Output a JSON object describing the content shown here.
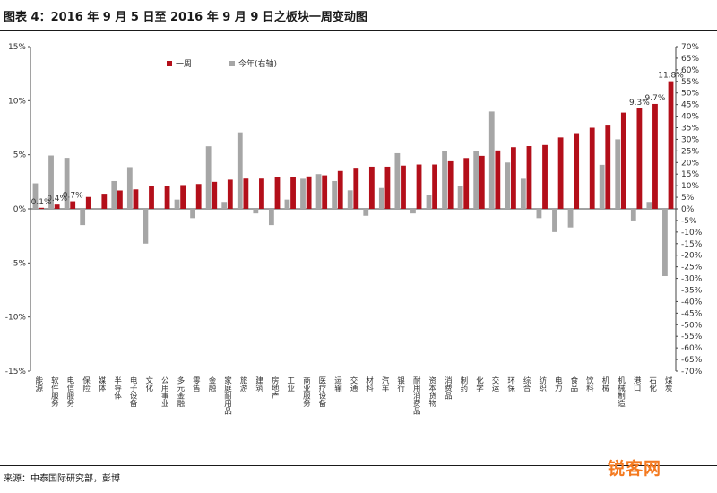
{
  "title": "图表 4：2016 年 9 月 5 日至 2016 年 9 月 9 日之板块一周变动图",
  "source": "来源：中泰国际研究部，彭博",
  "watermark": "锐客网",
  "chart_data": {
    "type": "bar",
    "legend_placement": "top-left",
    "grid": false,
    "categories": [
      "能源",
      "软件服务",
      "电信服务",
      "保险",
      "媒体",
      "半导体",
      "电子设备",
      "文化",
      "公用事业",
      "多元金融",
      "零售",
      "金融",
      "家庭耐用品",
      "旅游",
      "建筑",
      "房地产",
      "工业",
      "商业服务",
      "医疗设备",
      "运输",
      "交通",
      "材料",
      "汽车",
      "银行",
      "耐用消费品",
      "资本货物",
      "消费品",
      "制药",
      "化学",
      "交运",
      "环保",
      "综合",
      "纺织",
      "电力",
      "食品",
      "饮料",
      "机械",
      "机械制造",
      "港口",
      "石化",
      "煤炭"
    ],
    "series": [
      {
        "name": "一周",
        "axis": "left",
        "color": "#b30f1a",
        "values": [
          0.1,
          0.4,
          0.7,
          1.1,
          1.4,
          1.7,
          1.8,
          2.1,
          2.1,
          2.2,
          2.3,
          2.5,
          2.7,
          2.8,
          2.8,
          2.9,
          2.9,
          3.0,
          3.1,
          3.5,
          3.8,
          3.9,
          3.9,
          4.0,
          4.1,
          4.1,
          4.4,
          4.7,
          4.9,
          5.4,
          5.7,
          5.8,
          5.9,
          6.6,
          7.0,
          7.5,
          7.7,
          8.9,
          9.3,
          9.7,
          11.8
        ]
      },
      {
        "name": "今年(右轴)",
        "axis": "right",
        "color": "#a6a6a6",
        "values": [
          11.0,
          23.0,
          22.0,
          -7.0,
          0.0,
          12.0,
          18.0,
          -15.0,
          0.0,
          4.0,
          -4.0,
          27.0,
          3.0,
          33.0,
          -2.0,
          -7.0,
          4.0,
          13.0,
          15.0,
          12.0,
          8.0,
          -3.0,
          9.0,
          24.0,
          -2.0,
          6.0,
          25.0,
          10.0,
          25.0,
          42.0,
          20.0,
          13.0,
          -4.0,
          -10.0,
          -8.0,
          0.0,
          19.0,
          30.0,
          -5.0,
          3.0,
          -29.0
        ]
      }
    ],
    "data_labels": [
      {
        "index": 0,
        "series": 0,
        "text": "0.1%"
      },
      {
        "index": 1,
        "series": 0,
        "text": "0.4%"
      },
      {
        "index": 2,
        "series": 0,
        "text": "0.7%"
      },
      {
        "index": 38,
        "series": 0,
        "text": "9.3%"
      },
      {
        "index": 39,
        "series": 0,
        "text": "9.7%"
      },
      {
        "index": 40,
        "series": 0,
        "text": "11.8%"
      }
    ],
    "y_left": {
      "min": -15,
      "max": 15,
      "step": 5,
      "ticks": [
        "-15%",
        "-10%",
        "-5%",
        "0%",
        "5%",
        "10%",
        "15%"
      ]
    },
    "y_right": {
      "min": -70,
      "max": 70,
      "step": 5,
      "ticks": [
        "-70%",
        "-65%",
        "-60%",
        "-55%",
        "-50%",
        "-45%",
        "-40%",
        "-35%",
        "-30%",
        "-25%",
        "-20%",
        "-15%",
        "-10%",
        "-5%",
        "0%",
        "5%",
        "10%",
        "15%",
        "20%",
        "25%",
        "30%",
        "35%",
        "40%",
        "45%",
        "50%",
        "55%",
        "60%",
        "65%",
        "70%"
      ]
    }
  }
}
